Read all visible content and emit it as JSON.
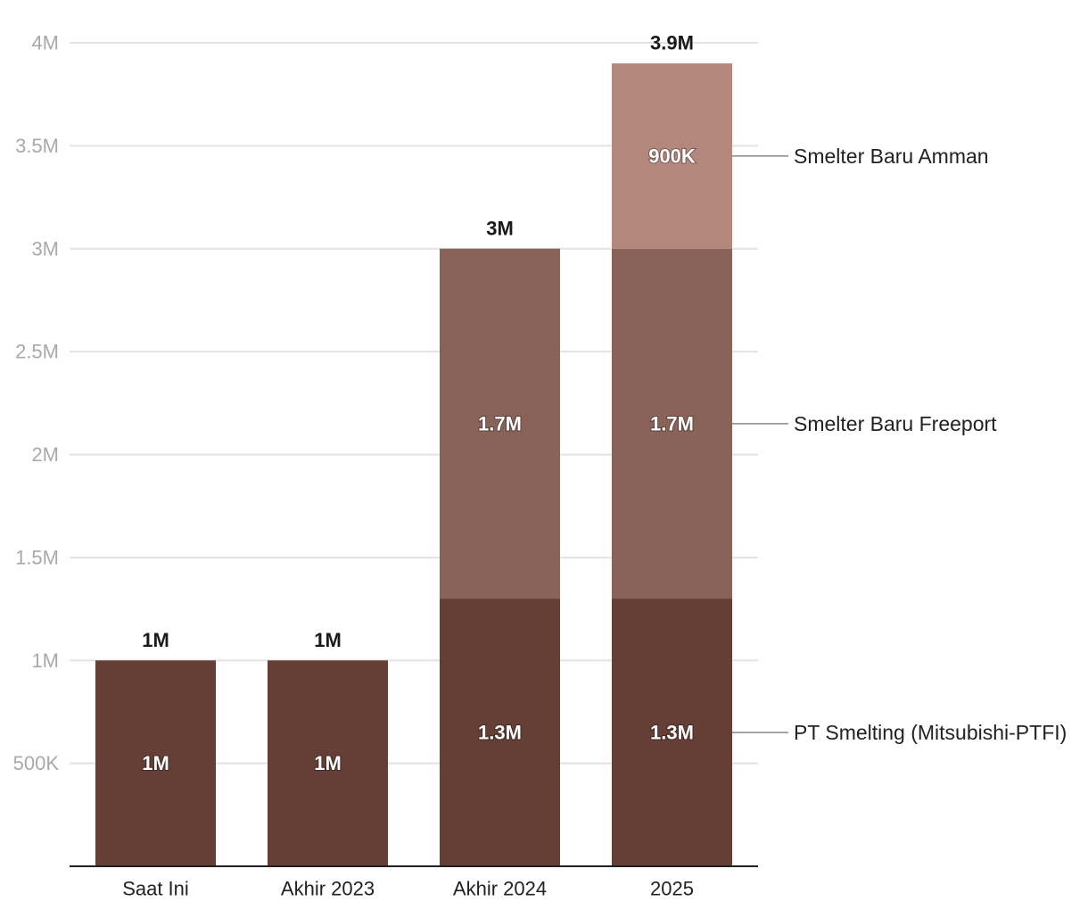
{
  "chart_data": {
    "type": "bar",
    "stacked": true,
    "categories": [
      "Saat Ini",
      "Akhir 2023",
      "Akhir 2024",
      "2025"
    ],
    "series": [
      {
        "name": "PT Smelting (Mitsubishi-PTFI)",
        "values": [
          1000000,
          1000000,
          1300000,
          1300000
        ],
        "labels": [
          "1M",
          "1M",
          "1.3M",
          "1.3M"
        ],
        "color": "#653f36"
      },
      {
        "name": "Smelter Baru Freeport",
        "values": [
          0,
          0,
          1700000,
          1700000
        ],
        "labels": [
          "",
          "",
          "1.7M",
          "1.7M"
        ],
        "color": "#8a6358"
      },
      {
        "name": "Smelter Baru Amman",
        "values": [
          0,
          0,
          0,
          900000
        ],
        "labels": [
          "",
          "",
          "",
          "900K"
        ],
        "color": "#b3877c"
      }
    ],
    "totals": [
      1000000,
      1000000,
      3000000,
      3900000
    ],
    "total_labels": [
      "1M",
      "1M",
      "3M",
      "3.9M"
    ],
    "y_ticks": [
      500000,
      1000000,
      1500000,
      2000000,
      2500000,
      3000000,
      3500000,
      4000000
    ],
    "y_tick_labels": [
      "500K",
      "1M",
      "1.5M",
      "2M",
      "2.5M",
      "3M",
      "3.5M",
      "4M"
    ],
    "ylim": [
      0,
      4000000
    ],
    "grid": true,
    "legend": "right-inline",
    "title": "",
    "xlabel": "",
    "ylabel": "",
    "colors": {
      "grid": "#e3e3e3",
      "axis": "#222222",
      "leader": "#888888"
    }
  }
}
